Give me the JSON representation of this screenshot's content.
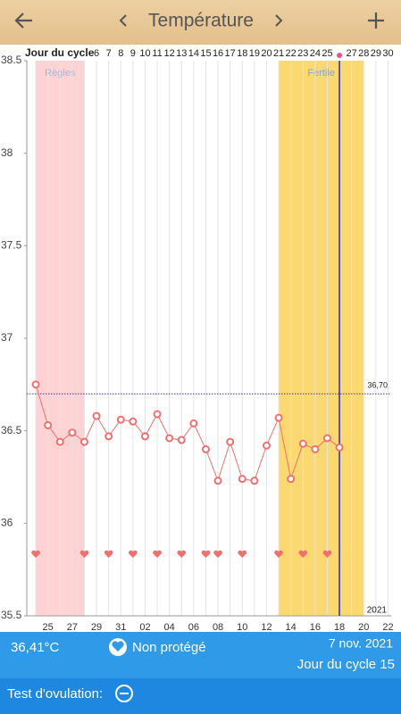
{
  "header": {
    "title": "Température"
  },
  "chart_data": {
    "type": "line",
    "x_title": "Jour du cycle",
    "categories": [
      null,
      null,
      null,
      null,
      null,
      "6",
      "7",
      "8",
      "9",
      "10",
      "11",
      "12",
      "13",
      "14",
      "15",
      "16",
      "17",
      "18",
      "19",
      "20",
      "21",
      "22",
      "23",
      "24",
      "25",
      null,
      "27",
      "28",
      "29",
      "30"
    ],
    "date_labels": [
      "25",
      "27",
      "29",
      "31",
      "02",
      "04",
      "06",
      "08",
      "10",
      "12",
      "14",
      "16",
      "18",
      "20",
      "22"
    ],
    "series": [
      {
        "name": "Température",
        "color": "#f07070",
        "values": [
          36.75,
          36.53,
          36.44,
          36.49,
          36.44,
          36.58,
          36.47,
          36.56,
          36.55,
          36.47,
          36.59,
          36.46,
          36.45,
          36.54,
          36.4,
          36.23,
          36.44,
          36.24,
          36.23,
          36.42,
          36.57,
          36.24,
          36.43,
          36.4,
          36.46,
          36.41,
          null,
          null,
          null,
          null
        ]
      }
    ],
    "hearts": [
      1,
      5,
      7,
      9,
      11,
      13,
      15,
      16,
      18,
      21,
      23,
      25
    ],
    "bands": [
      {
        "label": "Règles",
        "from": 1,
        "to": 5,
        "color": "#ffd3d3",
        "text_color": "#9bb8e8"
      },
      {
        "label": "Fertile",
        "from": 21,
        "to": 28,
        "color": "#fbd96f",
        "text_color": "#7aa6e0"
      }
    ],
    "today": 26,
    "cover_line": {
      "value": 36.7,
      "label": "36,70"
    },
    "year": "2021",
    "ylim": [
      35.5,
      38.5
    ],
    "yticks": [
      35.5,
      36,
      36.5,
      37,
      37.5,
      38,
      38.5
    ],
    "xlim": [
      0.26,
      30.26
    ]
  },
  "footer": {
    "temperature": "36,41°C",
    "status": "Non protégé",
    "date": "7 nov. 2021",
    "cycle_day": "Jour du cycle 15",
    "ovulation_test": "Test d'ovulation:"
  }
}
